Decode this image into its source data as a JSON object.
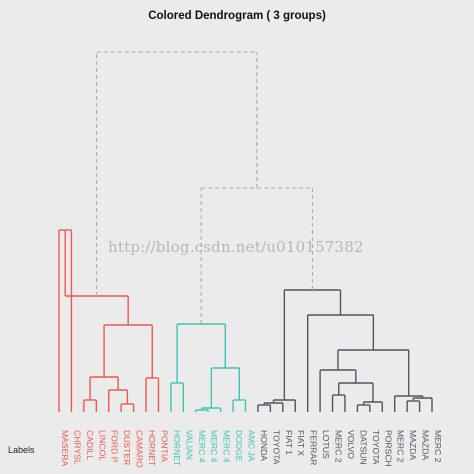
{
  "chart_data": {
    "type": "dendrogram",
    "title": "Colored Dendrogram ( 3  groups)",
    "xlabel": "Labels",
    "groups": 3,
    "group_colors": [
      "#f0584f",
      "#3fc3b5",
      "#4e5663"
    ],
    "upper_link_style": "dashed",
    "upper_link_color": "#aaaaaa",
    "leaves": [
      {
        "label": "MASERA",
        "group": 1
      },
      {
        "label": "CHRYSL",
        "group": 1
      },
      {
        "label": "CADILL",
        "group": 1
      },
      {
        "label": "LINCOL",
        "group": 1
      },
      {
        "label": "FORD P",
        "group": 1
      },
      {
        "label": "DUSTER",
        "group": 1
      },
      {
        "label": "CAMARO",
        "group": 1
      },
      {
        "label": "HORNET",
        "group": 1
      },
      {
        "label": "PONTIA",
        "group": 1
      },
      {
        "label": "HORNET",
        "group": 2
      },
      {
        "label": "VALIAN",
        "group": 2
      },
      {
        "label": "MERC 4",
        "group": 2
      },
      {
        "label": "MERC 4",
        "group": 2
      },
      {
        "label": "MERC 4",
        "group": 2
      },
      {
        "label": "DODGE",
        "group": 2
      },
      {
        "label": "AMC JA",
        "group": 2
      },
      {
        "label": "HONDA",
        "group": 3
      },
      {
        "label": "TOYOTA",
        "group": 3
      },
      {
        "label": "FIAT 1",
        "group": 3
      },
      {
        "label": "FIAT X",
        "group": 3
      },
      {
        "label": "FERRAR",
        "group": 3
      },
      {
        "label": "LOTUS",
        "group": 3
      },
      {
        "label": "MERC 2",
        "group": 3
      },
      {
        "label": "VOLVO",
        "group": 3
      },
      {
        "label": "DATSUN",
        "group": 3
      },
      {
        "label": "TOYOTA",
        "group": 3
      },
      {
        "label": "PORSCH",
        "group": 3
      },
      {
        "label": "MERC 2",
        "group": 3
      },
      {
        "label": "MAZDA",
        "group": 3
      },
      {
        "label": "MAZDA",
        "group": 3
      },
      {
        "label": "MERC 2",
        "group": 3
      }
    ],
    "merges": [
      {
        "a": "L0",
        "b": "L1",
        "height": 230,
        "color": "#f0584f"
      },
      {
        "a": "L2",
        "b": "L3",
        "height": 400,
        "color": "#f0584f"
      },
      {
        "a": "L5",
        "b": "L6",
        "height": 404,
        "color": "#f0584f"
      },
      {
        "a": "L4",
        "b": "m2",
        "height": 390,
        "color": "#f0584f"
      },
      {
        "a": "L7",
        "b": "L8",
        "height": 378,
        "color": "#f0584f"
      },
      {
        "a": "m1",
        "b": "m3",
        "height": 377,
        "color": "#f0584f"
      },
      {
        "a": "m5",
        "b": "m4",
        "height": 325,
        "color": "#f0584f"
      },
      {
        "a": "m0",
        "b": "m6",
        "height": 296,
        "color": "#f0584f"
      },
      {
        "a": "L9",
        "b": "L10",
        "height": 383,
        "color": "#3fc3b5"
      },
      {
        "a": "L11",
        "b": "L12",
        "height": 410,
        "color": "#3fc3b5"
      },
      {
        "a": "m9",
        "b": "L13",
        "height": 408,
        "color": "#3fc3b5"
      },
      {
        "a": "L14",
        "b": "L15",
        "height": 400,
        "color": "#3fc3b5"
      },
      {
        "a": "m10",
        "b": "m11",
        "height": 368,
        "color": "#3fc3b5"
      },
      {
        "a": "m8",
        "b": "m12",
        "height": 324,
        "color": "#3fc3b5"
      },
      {
        "a": "L16",
        "b": "L17",
        "height": 405,
        "color": "#4e5663"
      },
      {
        "a": "m14",
        "b": "L18",
        "height": 403,
        "color": "#4e5663"
      },
      {
        "a": "m15",
        "b": "L19",
        "height": 400,
        "color": "#4e5663"
      },
      {
        "a": "L22",
        "b": "L23",
        "height": 395,
        "color": "#4e5663"
      },
      {
        "a": "L24",
        "b": "L25",
        "height": 405,
        "color": "#4e5663"
      },
      {
        "a": "m18",
        "b": "L26",
        "height": 402,
        "color": "#4e5663"
      },
      {
        "a": "m17",
        "b": "m19",
        "height": 383,
        "color": "#4e5663"
      },
      {
        "a": "L21",
        "b": "m20",
        "height": 370,
        "color": "#4e5663"
      },
      {
        "a": "L28",
        "b": "L29",
        "height": 401,
        "color": "#4e5663"
      },
      {
        "a": "m22",
        "b": "L30",
        "height": 398,
        "color": "#4e5663"
      },
      {
        "a": "L27",
        "b": "m23",
        "height": 396,
        "color": "#4e5663"
      },
      {
        "a": "m21",
        "b": "m24",
        "height": 350,
        "color": "#4e5663"
      },
      {
        "a": "L20",
        "b": "m25",
        "height": 315,
        "color": "#4e5663"
      },
      {
        "a": "m16",
        "b": "m26",
        "height": 290,
        "color": "#4e5663"
      },
      {
        "a": "m13",
        "b": "m27",
        "height": 188,
        "color": "#aaaaaa",
        "dashed": true
      },
      {
        "a": "m7",
        "b": "m28",
        "height": 52,
        "color": "#aaaaaa",
        "dashed": true
      }
    ]
  },
  "watermark": "http://blog.csdn.net/u010157382"
}
